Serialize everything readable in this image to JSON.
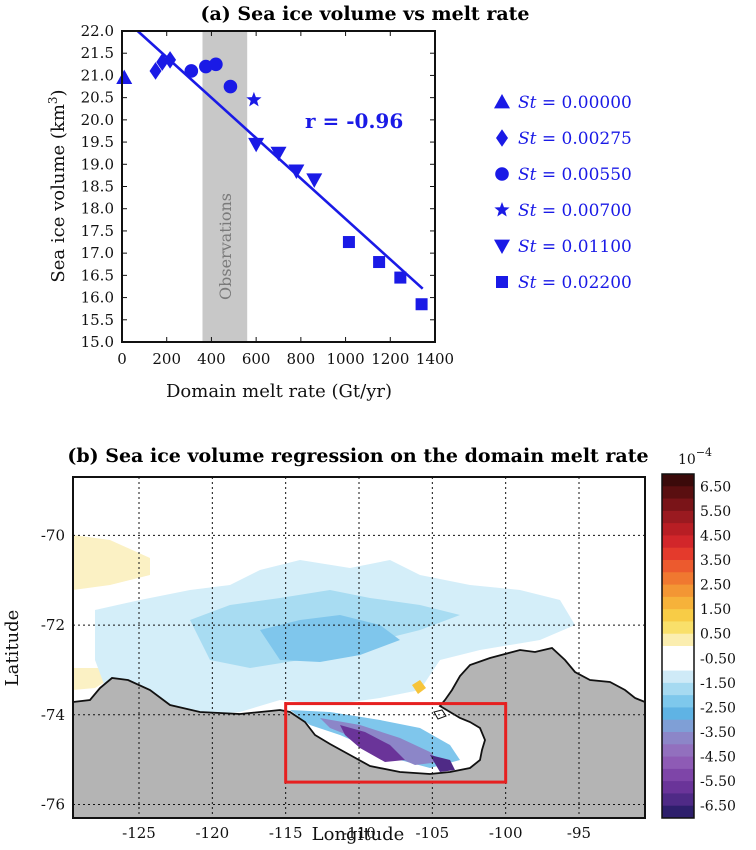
{
  "chart_data": [
    {
      "type": "scatter",
      "title": "(a) Sea ice volume vs melt rate",
      "xlabel": "Domain melt rate (Gt/yr)",
      "ylabel": "Sea ice volume (km3)",
      "ylabel_base": "Sea ice volume (km",
      "ylabel_sup": "3",
      "ylabel_close": ")",
      "xlim": [
        0,
        1400
      ],
      "ylim": [
        15.0,
        22.0
      ],
      "xticks": [
        "0",
        "200",
        "400",
        "600",
        "800",
        "1000",
        "1200",
        "1400"
      ],
      "yticks": [
        "15.0",
        "15.5",
        "16.0",
        "16.5",
        "17.0",
        "17.5",
        "18.0",
        "18.5",
        "19.0",
        "19.5",
        "20.0",
        "20.5",
        "21.0",
        "21.5",
        "22.0"
      ],
      "observations_band": {
        "label": "Observations",
        "x_range": [
          360,
          560
        ],
        "color": "#c8c8c8"
      },
      "fit_line": {
        "x": [
          70,
          1345
        ],
        "y": [
          22.0,
          16.2
        ]
      },
      "annotation": "r = -0.96",
      "series_color": "#1a1ae6",
      "series": [
        {
          "name": "St = 0.00000",
          "label_var": "St",
          "label_val": " = 0.00000",
          "marker": "triangle-up",
          "points": [
            [
              10,
              20.95
            ]
          ]
        },
        {
          "name": "St = 0.00275",
          "label_var": "St",
          "label_val": " = 0.00275",
          "marker": "diamond",
          "points": [
            [
              150,
              21.1
            ],
            [
              180,
              21.3
            ],
            [
              215,
              21.35
            ]
          ]
        },
        {
          "name": "St = 0.00550",
          "label_var": "St",
          "label_val": " = 0.00550",
          "marker": "circle",
          "points": [
            [
              310,
              21.1
            ],
            [
              375,
              21.2
            ],
            [
              420,
              21.25
            ],
            [
              485,
              20.75
            ]
          ]
        },
        {
          "name": "St = 0.00700",
          "label_var": "St",
          "label_val": " = 0.00700",
          "marker": "star",
          "points": [
            [
              590,
              20.45
            ]
          ]
        },
        {
          "name": "St = 0.01100",
          "label_var": "St",
          "label_val": " = 0.01100",
          "marker": "triangle-down",
          "points": [
            [
              600,
              19.45
            ],
            [
              700,
              19.25
            ],
            [
              780,
              18.85
            ],
            [
              860,
              18.65
            ]
          ]
        },
        {
          "name": "St = 0.02200",
          "label_var": "St",
          "label_val": " = 0.02200",
          "marker": "square",
          "points": [
            [
              1015,
              17.25
            ],
            [
              1150,
              16.8
            ],
            [
              1245,
              16.45
            ],
            [
              1340,
              15.85
            ]
          ]
        }
      ]
    },
    {
      "type": "heatmap",
      "title": "(b) Sea ice volume regression on the domain melt rate",
      "xlabel": "Longitude",
      "ylabel": "Latitude",
      "xticks": [
        "-125",
        "-120",
        "-115",
        "-110",
        "-105",
        "-100",
        "-95"
      ],
      "xtick_values": [
        -125,
        -120,
        -115,
        -110,
        -105,
        -100,
        -95
      ],
      "yticks": [
        "-70",
        "-72",
        "-74",
        "-76"
      ],
      "ytick_values": [
        -70,
        -72,
        -74,
        -76
      ],
      "xlim": [
        -129.5,
        -90.5
      ],
      "ylim": [
        -76.3,
        -68.7
      ],
      "grid": true,
      "land_color": "#b4b4b4",
      "box": {
        "lon": [
          -115,
          -100
        ],
        "lat": [
          -75.5,
          -73.75
        ],
        "color": "#e62020"
      },
      "colorbar": {
        "multiplier": "10",
        "multiplier_exp": "−4",
        "ticks": [
          "6.50",
          "5.50",
          "4.50",
          "3.50",
          "2.50",
          "1.50",
          "0.50",
          "-0.50",
          "-1.50",
          "-2.50",
          "-3.50",
          "-4.50",
          "-5.50",
          "-6.50"
        ],
        "colors": [
          "#3b0a0a",
          "#5a0f10",
          "#7a1418",
          "#9a1a20",
          "#b81e24",
          "#d2262a",
          "#e43a2c",
          "#ec5a2e",
          "#f07830",
          "#f39634",
          "#f6b23a",
          "#f8cc46",
          "#f9e06a",
          "#fbeeb0",
          "#ffffff",
          "#ffffff",
          "#cfeaf7",
          "#a6daf1",
          "#7ec8ec",
          "#5fb3e4",
          "#7f9fd6",
          "#8c86c8",
          "#9270be",
          "#8e5bb5",
          "#7e45a8",
          "#6a3499",
          "#4f2a86",
          "#2e1f6c"
        ]
      }
    }
  ]
}
